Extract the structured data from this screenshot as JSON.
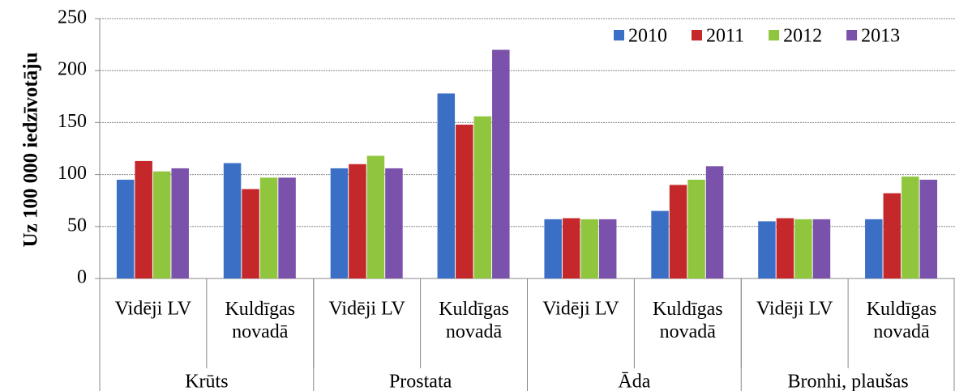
{
  "chart_data": {
    "type": "bar",
    "y_label": "Uz 100 000 iedzīvotāju",
    "categories": [
      "Vidēji LV",
      "Kuldīgas novadā",
      "Vidēji LV",
      "Kuldīgas novadā",
      "Vidēji LV",
      "Kuldīgas novadā",
      "Vidēji LV",
      "Kuldīgas novadā"
    ],
    "groups": [
      "Krūts",
      "Prostata",
      "Āda",
      "Bronhi, plaušas"
    ],
    "series": [
      {
        "name": "2010",
        "color": "#3b6fc6",
        "values": [
          95,
          111,
          106,
          178,
          57,
          65,
          55,
          57
        ]
      },
      {
        "name": "2011",
        "color": "#c4282b",
        "values": [
          113,
          86,
          110,
          148,
          58,
          90,
          58,
          82
        ]
      },
      {
        "name": "2012",
        "color": "#8fc63e",
        "values": [
          103,
          97,
          118,
          156,
          57,
          95,
          57,
          98
        ]
      },
      {
        "name": "2013",
        "color": "#7b52ab",
        "values": [
          106,
          97,
          106,
          220,
          57,
          108,
          57,
          95
        ]
      }
    ],
    "ylim": [
      0,
      250
    ],
    "yticks": [
      0,
      50,
      100,
      150,
      200,
      250
    ],
    "grid": true,
    "legend": "top-right"
  }
}
